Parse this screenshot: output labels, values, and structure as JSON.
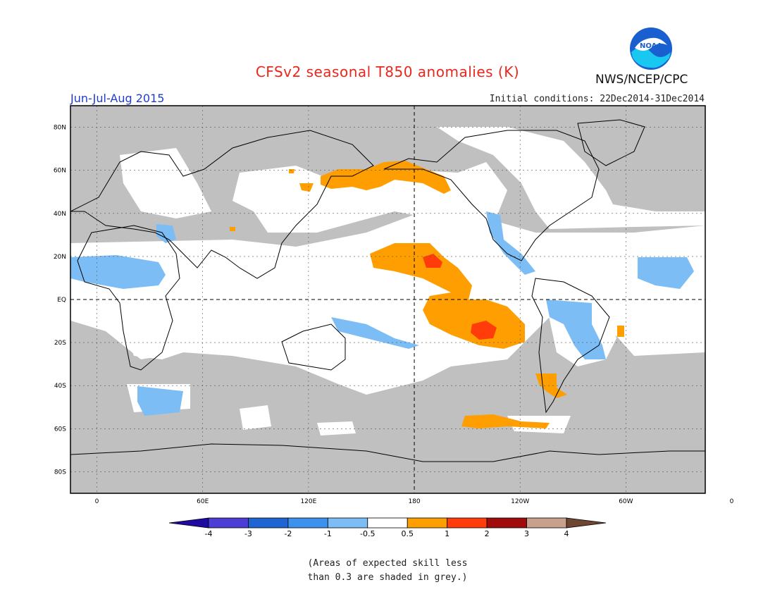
{
  "header": {
    "title": "CFSv2 seasonal T850 anomalies (K)",
    "season": "Jun-Jul-Aug 2015",
    "agency": "NWS/NCEP/CPC",
    "initial_conditions": "Initial conditions: 22Dec2014-31Dec2014",
    "logo_text": "NOAA"
  },
  "map": {
    "lat_labels": [
      "80N",
      "60N",
      "40N",
      "20N",
      "EQ",
      "20S",
      "40S",
      "60S",
      "80S"
    ],
    "lat_values": [
      80,
      60,
      40,
      20,
      0,
      -20,
      -40,
      -60,
      -80
    ],
    "lon_labels": [
      "0",
      "60E",
      "120E",
      "180",
      "120W",
      "60W",
      "0"
    ],
    "lon_values": [
      0,
      60,
      120,
      180,
      240,
      300,
      360
    ],
    "skill_mask_color": "#c0c0c0",
    "land_outline_color": "#000000"
  },
  "colorbar": {
    "labels": [
      "-4",
      "-3",
      "-2",
      "-1",
      "-0.5",
      "0.5",
      "1",
      "2",
      "3",
      "4"
    ],
    "colors": [
      "#1e0aa0",
      "#4b3dd6",
      "#1e64d2",
      "#3c91ee",
      "#7dbdf5",
      "#ffffff",
      "#ff9e00",
      "#ff3c0a",
      "#a00a0a",
      "#c8a08c",
      "#6e4632"
    ]
  },
  "footnote": {
    "line1": "(Areas of expected skill less",
    "line2": "than 0.3 are shaded in grey.)"
  }
}
